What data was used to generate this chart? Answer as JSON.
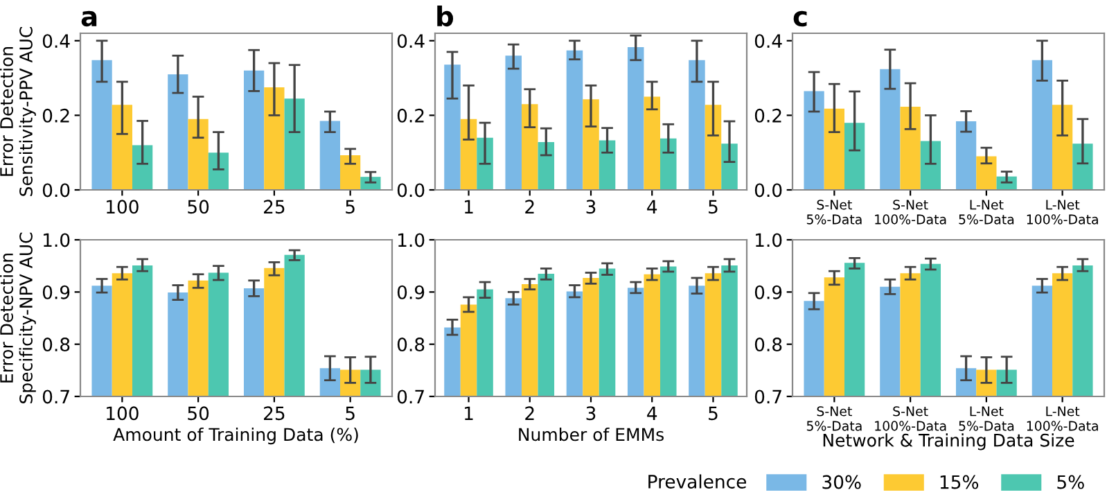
{
  "chart_data": [
    {
      "type": "bar",
      "title": "a",
      "ylabel": "Error Detection\nSensitivity-PPV AUC",
      "categories": [
        "100",
        "50",
        "25",
        "5"
      ],
      "ylim": [
        0,
        0.42
      ],
      "yticks": [
        {
          "value": 0,
          "label": "0.0"
        },
        {
          "value": 0.2,
          "label": "0.2"
        },
        {
          "value": 0.4,
          "label": "0.4"
        }
      ],
      "grid": false,
      "legend": false,
      "series": [
        {
          "color": "#7ab8e6",
          "values": [
            0.348,
            0.31,
            0.32,
            0.185
          ],
          "errors": [
            [
              0.29,
              0.4
            ],
            [
              0.26,
              0.36
            ],
            [
              0.265,
              0.375
            ],
            [
              0.155,
              0.21
            ]
          ]
        },
        {
          "color": "#fdca33",
          "values": [
            0.228,
            0.19,
            0.275,
            0.093
          ],
          "errors": [
            [
              0.15,
              0.29
            ],
            [
              0.14,
              0.25
            ],
            [
              0.2,
              0.34
            ],
            [
              0.07,
              0.11
            ]
          ]
        },
        {
          "color": "#4dc7b0",
          "values": [
            0.12,
            0.1,
            0.245,
            0.035
          ],
          "errors": [
            [
              0.07,
              0.185
            ],
            [
              0.055,
              0.155
            ],
            [
              0.155,
              0.335
            ],
            [
              0.02,
              0.048
            ]
          ]
        }
      ]
    },
    {
      "type": "bar",
      "title": "b",
      "categories": [
        "1",
        "2",
        "3",
        "4",
        "5"
      ],
      "ylim": [
        0,
        0.42
      ],
      "yticks": [
        {
          "value": 0,
          "label": "0.0"
        },
        {
          "value": 0.2,
          "label": "0.2"
        },
        {
          "value": 0.4,
          "label": "0.4"
        }
      ],
      "grid": false,
      "legend": false,
      "series": [
        {
          "color": "#7ab8e6",
          "values": [
            0.336,
            0.36,
            0.374,
            0.383,
            0.348
          ],
          "errors": [
            [
              0.245,
              0.37
            ],
            [
              0.325,
              0.39
            ],
            [
              0.35,
              0.4
            ],
            [
              0.348,
              0.414
            ],
            [
              0.29,
              0.4
            ]
          ]
        },
        {
          "color": "#fdca33",
          "values": [
            0.19,
            0.23,
            0.243,
            0.25,
            0.228
          ],
          "errors": [
            [
              0.135,
              0.28
            ],
            [
              0.168,
              0.27
            ],
            [
              0.17,
              0.28
            ],
            [
              0.216,
              0.29
            ],
            [
              0.146,
              0.29
            ]
          ]
        },
        {
          "color": "#4dc7b0",
          "values": [
            0.14,
            0.128,
            0.133,
            0.138,
            0.124
          ],
          "errors": [
            [
              0.07,
              0.18
            ],
            [
              0.093,
              0.165
            ],
            [
              0.1,
              0.166
            ],
            [
              0.1,
              0.176
            ],
            [
              0.075,
              0.184
            ]
          ]
        }
      ]
    },
    {
      "type": "bar",
      "title": "c",
      "categories": [
        "S-Net\n5%-Data",
        "S-Net\n100%-Data",
        "L-Net\n5%-Data",
        "L-Net\n100%-Data"
      ],
      "ylim": [
        0,
        0.42
      ],
      "yticks": [
        {
          "value": 0,
          "label": "0.0"
        },
        {
          "value": 0.2,
          "label": "0.2"
        },
        {
          "value": 0.4,
          "label": "0.4"
        }
      ],
      "grid": false,
      "legend": false,
      "series": [
        {
          "color": "#7ab8e6",
          "values": [
            0.265,
            0.324,
            0.184,
            0.348
          ],
          "errors": [
            [
              0.21,
              0.316
            ],
            [
              0.271,
              0.376
            ],
            [
              0.156,
              0.211
            ],
            [
              0.293,
              0.4
            ]
          ]
        },
        {
          "color": "#fdca33",
          "values": [
            0.218,
            0.223,
            0.09,
            0.228
          ],
          "errors": [
            [
              0.155,
              0.284
            ],
            [
              0.163,
              0.286
            ],
            [
              0.071,
              0.113
            ],
            [
              0.146,
              0.293
            ]
          ]
        },
        {
          "color": "#4dc7b0",
          "values": [
            0.18,
            0.131,
            0.036,
            0.124
          ],
          "errors": [
            [
              0.106,
              0.264
            ],
            [
              0.07,
              0.2
            ],
            [
              0.02,
              0.049
            ],
            [
              0.071,
              0.19
            ]
          ]
        }
      ]
    },
    {
      "type": "bar",
      "xlabel": "Amount of Training Data (%)",
      "ylabel": "Error Detection\nSpecificity-NPV AUC",
      "categories": [
        "100",
        "50",
        "25",
        "5"
      ],
      "ylim": [
        0.7,
        1.0
      ],
      "yticks": [
        {
          "value": 0.7,
          "label": "0.7"
        },
        {
          "value": 0.8,
          "label": "0.8"
        },
        {
          "value": 0.9,
          "label": "0.9"
        },
        {
          "value": 1.0,
          "label": "1.0"
        }
      ],
      "grid": false,
      "legend": false,
      "series": [
        {
          "color": "#7ab8e6",
          "values": [
            0.912,
            0.899,
            0.907,
            0.754
          ],
          "errors": [
            [
              0.899,
              0.925
            ],
            [
              0.885,
              0.913
            ],
            [
              0.892,
              0.922
            ],
            [
              0.731,
              0.777
            ]
          ]
        },
        {
          "color": "#fdca33",
          "values": [
            0.936,
            0.922,
            0.946,
            0.751
          ],
          "errors": [
            [
              0.924,
              0.948
            ],
            [
              0.908,
              0.934
            ],
            [
              0.932,
              0.957
            ],
            [
              0.726,
              0.775
            ]
          ]
        },
        {
          "color": "#4dc7b0",
          "values": [
            0.951,
            0.937,
            0.971,
            0.751
          ],
          "errors": [
            [
              0.94,
              0.963
            ],
            [
              0.923,
              0.95
            ],
            [
              0.961,
              0.98
            ],
            [
              0.726,
              0.776
            ]
          ]
        }
      ]
    },
    {
      "type": "bar",
      "xlabel": "Number of EMMs",
      "categories": [
        "1",
        "2",
        "3",
        "4",
        "5"
      ],
      "ylim": [
        0.7,
        1.0
      ],
      "yticks": [
        {
          "value": 0.7,
          "label": "0.7"
        },
        {
          "value": 0.8,
          "label": "0.8"
        },
        {
          "value": 0.9,
          "label": "0.9"
        },
        {
          "value": 1.0,
          "label": "1.0"
        }
      ],
      "grid": false,
      "legend": false,
      "series": [
        {
          "color": "#7ab8e6",
          "values": [
            0.832,
            0.888,
            0.901,
            0.908,
            0.912
          ],
          "errors": [
            [
              0.818,
              0.847
            ],
            [
              0.876,
              0.9
            ],
            [
              0.89,
              0.913
            ],
            [
              0.898,
              0.919
            ],
            [
              0.897,
              0.927
            ]
          ]
        },
        {
          "color": "#fdca33",
          "values": [
            0.876,
            0.915,
            0.927,
            0.934,
            0.936
          ],
          "errors": [
            [
              0.862,
              0.89
            ],
            [
              0.905,
              0.925
            ],
            [
              0.916,
              0.937
            ],
            [
              0.923,
              0.945
            ],
            [
              0.923,
              0.948
            ]
          ]
        },
        {
          "color": "#4dc7b0",
          "values": [
            0.905,
            0.935,
            0.945,
            0.949,
            0.951
          ],
          "errors": [
            [
              0.889,
              0.919
            ],
            [
              0.924,
              0.945
            ],
            [
              0.933,
              0.955
            ],
            [
              0.939,
              0.959
            ],
            [
              0.939,
              0.963
            ]
          ]
        }
      ]
    },
    {
      "type": "bar",
      "xlabel": "Network & Training Data Size",
      "legend_title": "Prevalence",
      "categories": [
        "S-Net\n5%-Data",
        "S-Net\n100%-Data",
        "L-Net\n5%-Data",
        "L-Net\n100%-Data"
      ],
      "ylim": [
        0.7,
        1.0
      ],
      "yticks": [
        {
          "value": 0.7,
          "label": "0.7"
        },
        {
          "value": 0.8,
          "label": "0.8"
        },
        {
          "value": 0.9,
          "label": "0.9"
        },
        {
          "value": 1.0,
          "label": "1.0"
        }
      ],
      "grid": false,
      "legend": "bottom",
      "series": [
        {
          "name": "30%",
          "color": "#7ab8e6",
          "values": [
            0.883,
            0.91,
            0.754,
            0.912
          ],
          "errors": [
            [
              0.867,
              0.898
            ],
            [
              0.896,
              0.924
            ],
            [
              0.731,
              0.777
            ],
            [
              0.899,
              0.925
            ]
          ]
        },
        {
          "name": "15%",
          "color": "#fdca33",
          "values": [
            0.928,
            0.936,
            0.751,
            0.936
          ],
          "errors": [
            [
              0.914,
              0.94
            ],
            [
              0.924,
              0.948
            ],
            [
              0.726,
              0.775
            ],
            [
              0.923,
              0.948
            ]
          ]
        },
        {
          "name": "5%",
          "color": "#4dc7b0",
          "values": [
            0.956,
            0.954,
            0.751,
            0.951
          ],
          "errors": [
            [
              0.945,
              0.965
            ],
            [
              0.943,
              0.964
            ],
            [
              0.726,
              0.776
            ],
            [
              0.94,
              0.963
            ]
          ]
        }
      ]
    }
  ]
}
